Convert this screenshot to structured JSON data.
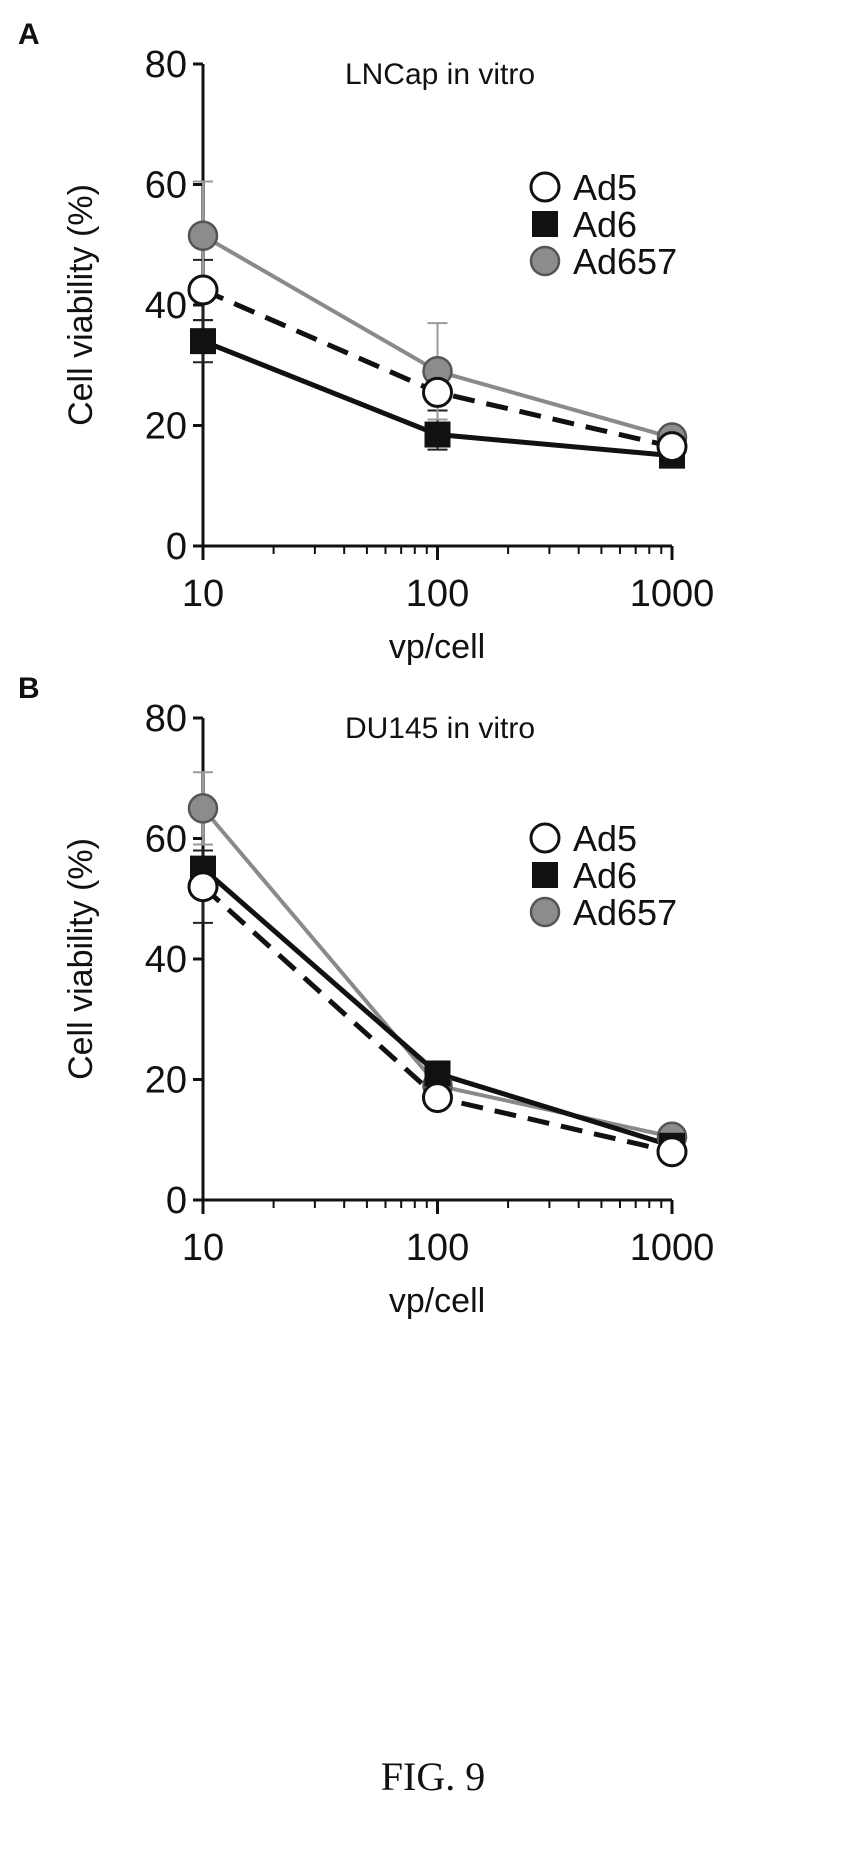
{
  "figure_label": "FIG. 9",
  "chart_data": [
    {
      "panel_label": "A",
      "type": "line",
      "title": "LNCap in vitro",
      "xlabel": "vp/cell",
      "ylabel": "Cell viability (%)",
      "x_scale": "log",
      "xlim": [
        10,
        1000
      ],
      "ylim": [
        0,
        80
      ],
      "x_ticks": [
        10,
        100,
        1000
      ],
      "y_ticks": [
        0,
        20,
        40,
        60,
        80
      ],
      "x": [
        10,
        100,
        1000
      ],
      "legend_position": "right",
      "series": [
        {
          "name": "Ad5",
          "marker": "open-circle",
          "line": "dashed",
          "color": "#111111",
          "values": [
            42.5,
            25.5,
            16.5
          ],
          "errors": [
            5,
            3,
            1.5
          ]
        },
        {
          "name": "Ad6",
          "marker": "filled-square",
          "line": "solid",
          "color": "#111111",
          "values": [
            34,
            18.5,
            15
          ],
          "errors": [
            3.5,
            2.5,
            1
          ]
        },
        {
          "name": "Ad657",
          "marker": "gray-circle",
          "line": "solid",
          "color": "#8a8a8a",
          "values": [
            51.5,
            29,
            18
          ],
          "errors": [
            9,
            8,
            1.5
          ]
        }
      ]
    },
    {
      "panel_label": "B",
      "type": "line",
      "title": "DU145 in vitro",
      "xlabel": "vp/cell",
      "ylabel": "Cell viability (%)",
      "x_scale": "log",
      "xlim": [
        10,
        1000
      ],
      "ylim": [
        0,
        80
      ],
      "x_ticks": [
        10,
        100,
        1000
      ],
      "y_ticks": [
        0,
        20,
        40,
        60,
        80
      ],
      "x": [
        10,
        100,
        1000
      ],
      "legend_position": "right",
      "series": [
        {
          "name": "Ad5",
          "marker": "open-circle",
          "line": "dashed",
          "color": "#111111",
          "values": [
            52,
            17,
            8
          ],
          "errors": [
            6,
            1.5,
            1
          ]
        },
        {
          "name": "Ad6",
          "marker": "filled-square",
          "line": "solid",
          "color": "#111111",
          "values": [
            55,
            21,
            9
          ],
          "errors": [
            3,
            1.5,
            1
          ]
        },
        {
          "name": "Ad657",
          "marker": "gray-circle",
          "line": "solid",
          "color": "#8a8a8a",
          "values": [
            65,
            19,
            10.5
          ],
          "errors": [
            6,
            1.5,
            1
          ]
        }
      ]
    }
  ]
}
